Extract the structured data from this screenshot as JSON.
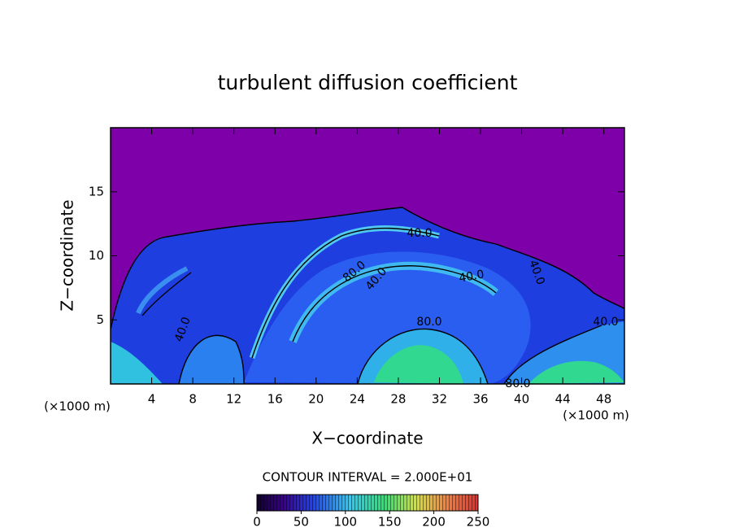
{
  "chart_data": {
    "type": "contourf",
    "title": "turbulent diffusion coefficient",
    "x_label": "X−coordinate",
    "y_label": "Z−coordinate",
    "x_unit": "(×1000 m)",
    "y_unit": "(×1000 m)",
    "xlim": [
      0,
      50
    ],
    "ylim": [
      0,
      20
    ],
    "xticks": [
      4,
      8,
      12,
      16,
      20,
      24,
      28,
      32,
      36,
      40,
      44,
      48
    ],
    "yticks": [
      5,
      10,
      15
    ],
    "contour_interval": "CONTOUR INTERVAL = 2.000E+01",
    "contour_labels": [
      "40.0",
      "80.0",
      "40.0",
      "40.0",
      "80.0",
      "40.0",
      "80.0",
      "40.0",
      "40.0"
    ],
    "colorbar": {
      "lim": [
        0,
        250
      ],
      "ticks": [
        0,
        50,
        100,
        150,
        200,
        250
      ]
    }
  }
}
